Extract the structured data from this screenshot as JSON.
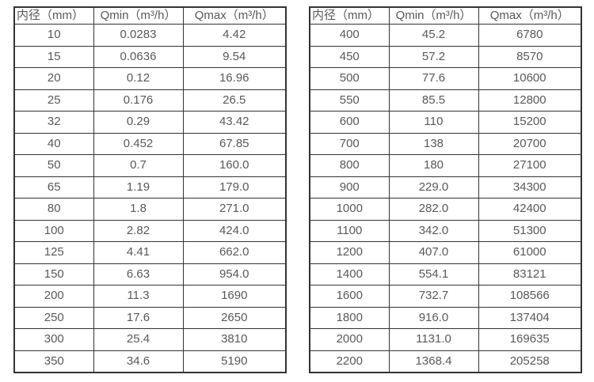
{
  "page": {
    "background_color": "#ffffff",
    "border_color": "#333333",
    "text_color": "#595959"
  },
  "tables": [
    {
      "id": "flow-table-small-diameters",
      "headers": [
        "内径（mm）",
        "Qmin（m³/h）",
        "Qmax（m³/h）"
      ],
      "rows": [
        [
          "10",
          "0.0283",
          "4.42"
        ],
        [
          "15",
          "0.0636",
          "9.54"
        ],
        [
          "20",
          "0.12",
          "16.96"
        ],
        [
          "25",
          "0.176",
          "26.5"
        ],
        [
          "32",
          "0.29",
          "43.42"
        ],
        [
          "40",
          "0.452",
          "67.85"
        ],
        [
          "50",
          "0.7",
          "160.0"
        ],
        [
          "65",
          "1.19",
          "179.0"
        ],
        [
          "80",
          "1.8",
          "271.0"
        ],
        [
          "100",
          "2.82",
          "424.0"
        ],
        [
          "125",
          "4.41",
          "662.0"
        ],
        [
          "150",
          "6.63",
          "954.0"
        ],
        [
          "200",
          "11.3",
          "1690"
        ],
        [
          "250",
          "17.6",
          "2650"
        ],
        [
          "300",
          "25.4",
          "3810"
        ],
        [
          "350",
          "34.6",
          "5190"
        ]
      ]
    },
    {
      "id": "flow-table-large-diameters",
      "headers": [
        "内径（mm）",
        "Qmin（m³/h）",
        "Qmax（m³/h）"
      ],
      "rows": [
        [
          "400",
          "45.2",
          "6780"
        ],
        [
          "450",
          "57.2",
          "8570"
        ],
        [
          "500",
          "77.6",
          "10600"
        ],
        [
          "550",
          "85.5",
          "12800"
        ],
        [
          "600",
          "110",
          "15200"
        ],
        [
          "700",
          "138",
          "20700"
        ],
        [
          "800",
          "180",
          "27100"
        ],
        [
          "900",
          "229.0",
          "34300"
        ],
        [
          "1000",
          "282.0",
          "42400"
        ],
        [
          "1100",
          "342.0",
          "51300"
        ],
        [
          "1200",
          "407.0",
          "61000"
        ],
        [
          "1400",
          "554.1",
          "83121"
        ],
        [
          "1600",
          "732.7",
          "108566"
        ],
        [
          "1800",
          "916.0",
          "137404"
        ],
        [
          "2000",
          "1131.0",
          "169635"
        ],
        [
          "2200",
          "1368.4",
          "205258"
        ]
      ]
    }
  ]
}
